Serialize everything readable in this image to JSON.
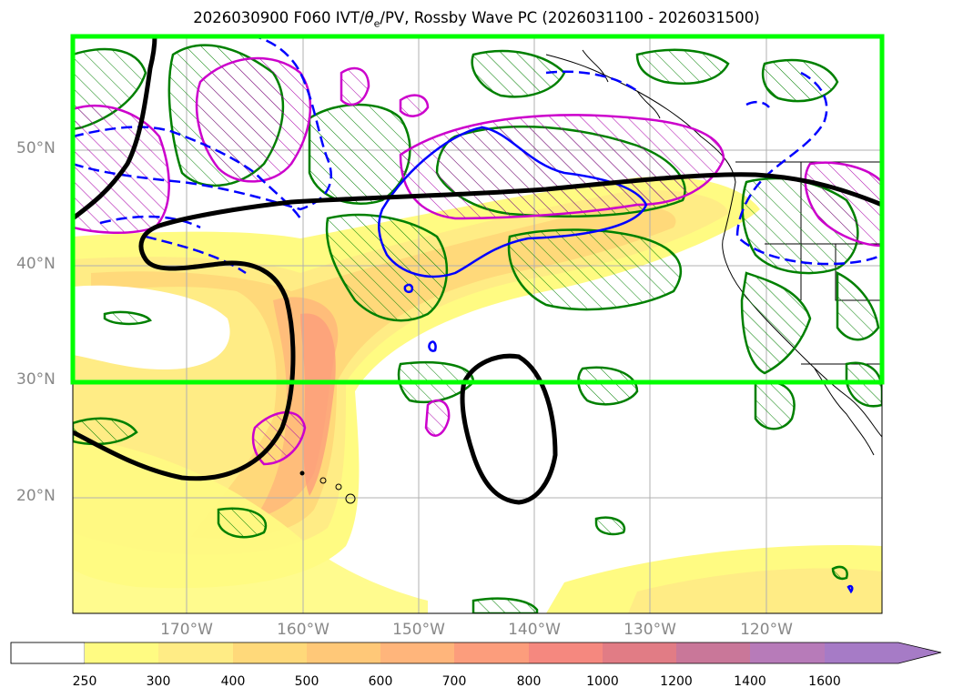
{
  "title": "2026030900 F060 IVT/θe/PV, Rossby Wave PC (2026031100 - 2026031500)",
  "title_parts": {
    "prefix": "2026030900 F060 IVT/",
    "theta": "θ",
    "sub": "e",
    "suffix": "/PV, Rossby Wave PC (2026031100 - 2026031500)"
  },
  "lat_labels": [
    "50°N",
    "40°N",
    "30°N",
    "20°N"
  ],
  "lon_labels": [
    "170°W",
    "160°W",
    "150°W",
    "140°W",
    "130°W",
    "120°W"
  ],
  "colorbar": {
    "ticks": [
      "250",
      "300",
      "400",
      "500",
      "600",
      "700",
      "800",
      "1000",
      "1200",
      "1400",
      "1600"
    ],
    "colors": [
      "#ffffff",
      "#fffb82",
      "#ffec85",
      "#ffd97a",
      "#ffc878",
      "#ffb57b",
      "#fc9d7c",
      "#f5887f",
      "#e17c85",
      "#c97799",
      "#b77bb9",
      "#a67bc6"
    ],
    "extend": "max"
  },
  "colors": {
    "frame_highlight": "#00ff00",
    "pv_contour": "#008000",
    "theta_contour": "#cc00cc",
    "rossby_positive": "#0000ff",
    "rossby_negative": "#000000",
    "gridline": "#b0b0b0"
  },
  "map": {
    "lat_range": [
      10,
      60
    ],
    "lon_range": [
      -180,
      -110
    ],
    "highlight_box": {
      "lat_range": [
        30,
        60
      ],
      "lon_range": [
        -180,
        -110
      ]
    }
  }
}
